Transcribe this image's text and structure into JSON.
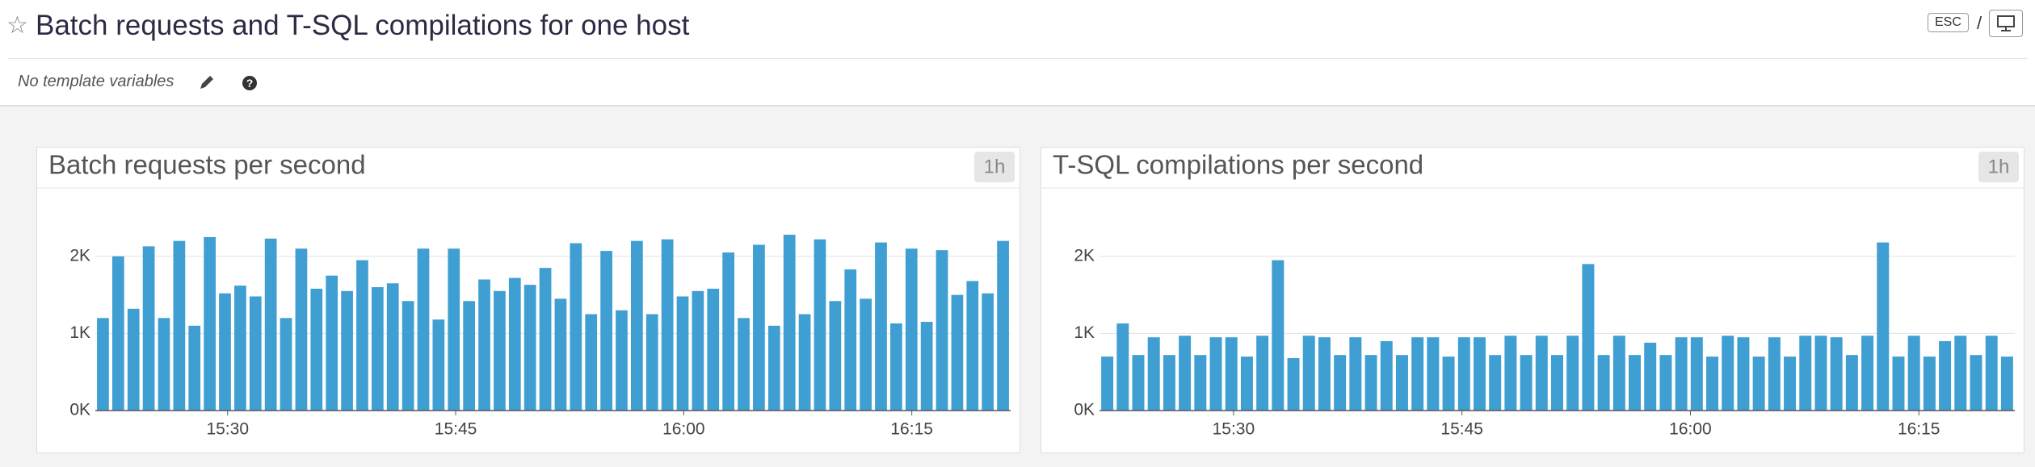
{
  "header": {
    "title": "Batch requests and T-SQL compilations for one host",
    "template_label": "No template variables",
    "esc": "ESC",
    "separator": "/"
  },
  "chart_data": [
    {
      "type": "bar",
      "title": "Batch requests per second",
      "time_range": "1h",
      "color": "#3f9fd3",
      "grid": true,
      "ylim": [
        0,
        2500
      ],
      "yticks": [
        {
          "value": 0,
          "label": "0K"
        },
        {
          "value": 1000,
          "label": "1K"
        },
        {
          "value": 2000,
          "label": "2K"
        }
      ],
      "xlim": [
        921.3,
        981.5
      ],
      "xticks": [
        {
          "value": 930,
          "label": "15:30"
        },
        {
          "value": 945,
          "label": "15:45"
        },
        {
          "value": 960,
          "label": "16:00"
        },
        {
          "value": 975,
          "label": "16:15"
        }
      ],
      "values": [
        1200,
        2000,
        1320,
        2130,
        1200,
        2200,
        1100,
        2250,
        1520,
        1620,
        1480,
        2230,
        1200,
        2100,
        1580,
        1750,
        1550,
        1950,
        1600,
        1650,
        1420,
        2100,
        1180,
        2100,
        1420,
        1700,
        1550,
        1720,
        1630,
        1850,
        1450,
        2170,
        1250,
        2070,
        1300,
        2200,
        1250,
        2220,
        1480,
        1550,
        1580,
        2050,
        1200,
        2150,
        1100,
        2280,
        1250,
        2220,
        1420,
        1830,
        1450,
        2180,
        1130,
        2100,
        1150,
        2080,
        1500,
        1680,
        1520,
        2200
      ]
    },
    {
      "type": "bar",
      "title": "T-SQL compilations per second",
      "time_range": "1h",
      "color": "#3f9fd3",
      "grid": true,
      "ylim": [
        0,
        2500
      ],
      "yticks": [
        {
          "value": 0,
          "label": "0K"
        },
        {
          "value": 1000,
          "label": "1K"
        },
        {
          "value": 2000,
          "label": "2K"
        }
      ],
      "xlim": [
        921.2,
        981.3
      ],
      "xticks": [
        {
          "value": 930,
          "label": "15:30"
        },
        {
          "value": 945,
          "label": "15:45"
        },
        {
          "value": 960,
          "label": "16:00"
        },
        {
          "value": 975,
          "label": "16:15"
        }
      ],
      "values": [
        700,
        1130,
        720,
        950,
        720,
        970,
        720,
        950,
        950,
        700,
        970,
        1950,
        680,
        970,
        950,
        720,
        950,
        720,
        900,
        720,
        950,
        950,
        700,
        950,
        950,
        720,
        970,
        720,
        970,
        720,
        970,
        1900,
        720,
        970,
        720,
        880,
        720,
        950,
        950,
        700,
        970,
        950,
        700,
        950,
        700,
        970,
        970,
        950,
        720,
        970,
        2180,
        700,
        970,
        700,
        900,
        970,
        720,
        970,
        700
      ]
    }
  ]
}
